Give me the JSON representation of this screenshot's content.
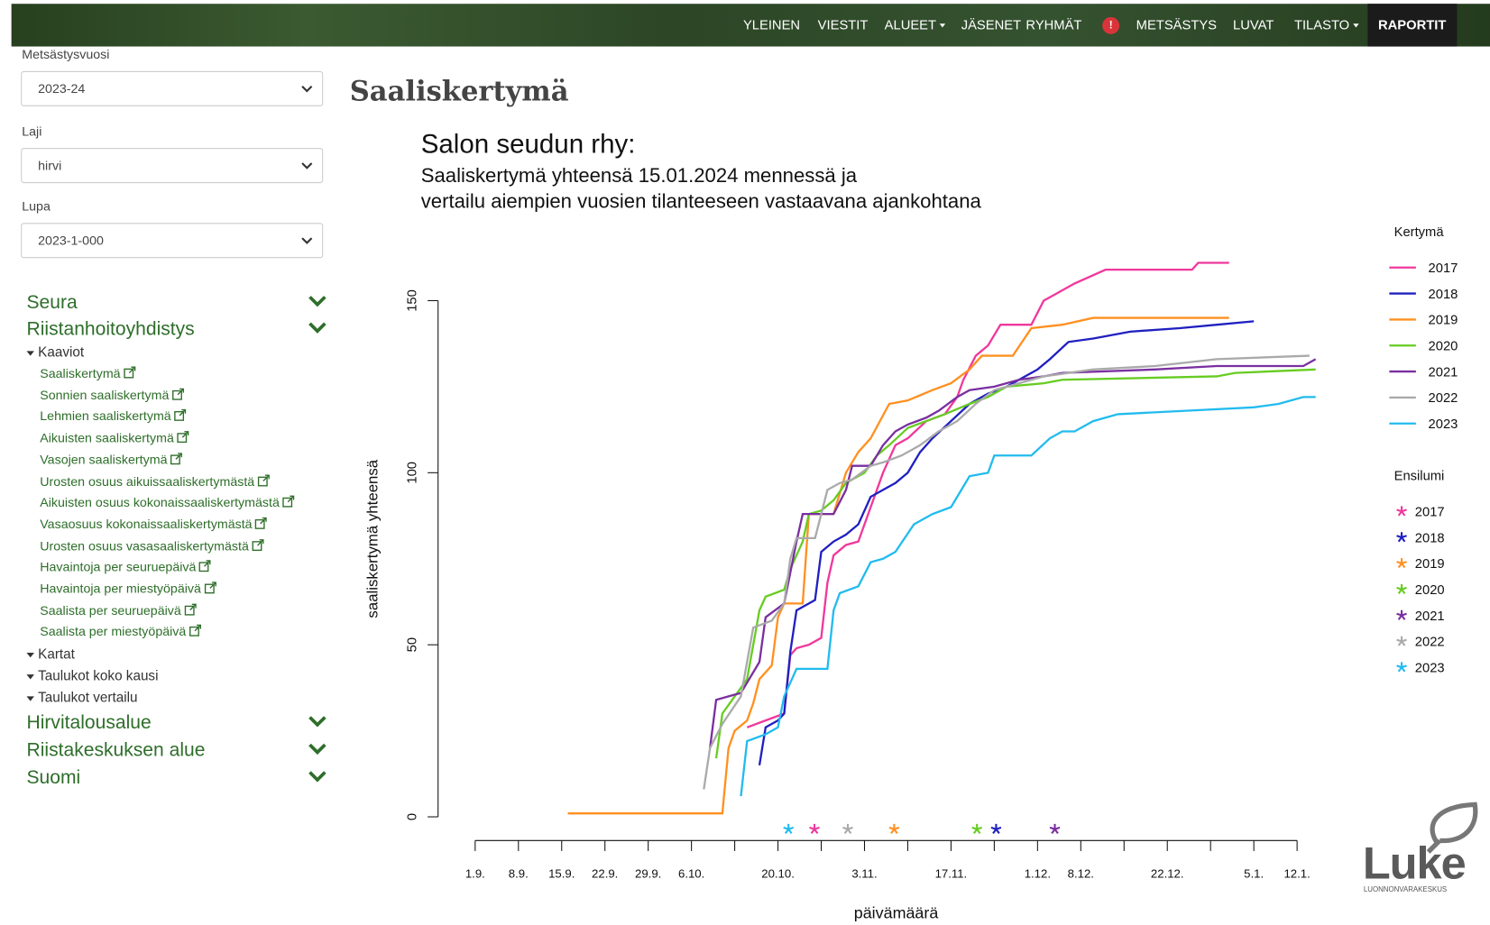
{
  "nav": {
    "items": [
      "YLEINEN",
      "VIESTIT",
      "ALUEET",
      "JÄSENET",
      "RYHMÄT",
      "METSÄSTYS",
      "LUVAT",
      "TILASTO",
      "RAPORTIT"
    ],
    "badge": "!"
  },
  "sidebar": {
    "filters": [
      {
        "label": "Metsästysvuosi",
        "value": "2023-24"
      },
      {
        "label": "Laji",
        "value": "hirvi"
      },
      {
        "label": "Lupa",
        "value": "2023-1-000"
      }
    ],
    "sections": [
      "Seura",
      "Riistanhoitoyhdistys"
    ],
    "group": "Kaaviot",
    "links": [
      "Saaliskertymä",
      "Sonnien saaliskertymä",
      "Lehmien saaliskertymä",
      "Aikuisten saaliskertymä",
      "Vasojen saaliskertymä",
      "Urosten osuus aikuissaaliskertymästä",
      "Aikuisten osuus kokonaissaaliskertymästä",
      "Vasaosuus kokonaissaaliskertymästä",
      "Urosten osuus vasasaaliskertymästä",
      "Havaintoja per seuruepäivä",
      "Havaintoja per miestyöpäivä",
      "Saalista per seuruepäivä",
      "Saalista per miestyöpäivä"
    ],
    "subgroups": [
      "Kartat",
      "Taulukot koko kausi",
      "Taulukot vertailu"
    ],
    "more_sections": [
      "Hirvitalousalue",
      "Riistakeskuksen alue",
      "Suomi"
    ]
  },
  "page_title": "Saaliskertymä",
  "logo": {
    "name": "Luke",
    "subtitle": "LUONNONVARAKESKUS"
  },
  "chart_data": {
    "type": "line",
    "title": "Salon seudun rhy:",
    "subtitle": [
      "Saaliskertymä yhteensä 15.01.2024 mennessä ja",
      "vertailu aiempien vuosien tilanteeseen vastaavana ajankohtana"
    ],
    "x_label": "päivämäärä",
    "y_label": "saaliskertymä yhteensä",
    "xlim": [
      -6,
      145
    ],
    "ylim": [
      -6.4,
      167.4
    ],
    "yticks": [
      0,
      50,
      100,
      150
    ],
    "xticks": [
      {
        "value": 0,
        "label": "1.9."
      },
      {
        "value": 7,
        "label": "8.9."
      },
      {
        "value": 14,
        "label": "15.9."
      },
      {
        "value": 21,
        "label": "22.9."
      },
      {
        "value": 28,
        "label": "29.9."
      },
      {
        "value": 35,
        "label": "6.10."
      },
      {
        "value": 49,
        "label": "20.10."
      },
      {
        "value": 63,
        "label": "3.11."
      },
      {
        "value": 77,
        "label": "17.11."
      },
      {
        "value": 91,
        "label": "1.12."
      },
      {
        "value": 98,
        "label": "8.12."
      },
      {
        "value": 112,
        "label": "22.12."
      },
      {
        "value": 126,
        "label": "5.1."
      },
      {
        "value": 133,
        "label": "12.1."
      }
    ],
    "xminor_ticks": [
      42,
      56,
      70,
      84,
      105,
      119
    ],
    "legend_title": "Kertymä",
    "series": [
      {
        "name": "2017",
        "color": "#f0389c",
        "x": [
          44,
          47,
          50,
          51,
          52,
          54,
          56,
          57,
          58,
          60,
          62,
          64,
          66,
          68,
          70,
          73,
          76,
          78,
          79,
          81,
          83,
          85,
          90,
          92,
          94,
          97,
          102,
          116,
          117,
          122
        ],
        "values": [
          26,
          28,
          30,
          47,
          49,
          50,
          52,
          68,
          76,
          79,
          80,
          90,
          100,
          108,
          110,
          115,
          117,
          122,
          127,
          134,
          137,
          143,
          143,
          150,
          152,
          155,
          159,
          159,
          161,
          161
        ]
      },
      {
        "name": "2018",
        "color": "#2020c0",
        "x": [
          46,
          47,
          49,
          50,
          51,
          52,
          54,
          55,
          56,
          58,
          60,
          62,
          64,
          66,
          68,
          70,
          72,
          74,
          77,
          80,
          83,
          86,
          91,
          93,
          96,
          100,
          106,
          114,
          120,
          126
        ],
        "values": [
          15,
          26,
          28,
          30,
          48,
          60,
          62,
          63,
          77,
          80,
          82,
          85,
          93,
          95,
          97,
          100,
          106,
          110,
          115,
          120,
          123,
          125,
          130,
          133,
          138,
          139,
          141,
          142,
          143,
          144
        ]
      },
      {
        "name": "2019",
        "color": "#ff9020",
        "x": [
          15,
          40,
          41,
          42,
          44,
          45,
          46,
          48,
          49,
          50,
          53,
          54,
          58,
          60,
          62,
          64,
          67,
          70,
          74,
          77,
          80,
          82,
          87,
          90,
          95,
          100,
          122
        ],
        "values": [
          1,
          1,
          20,
          25,
          28,
          33,
          40,
          44,
          58,
          62,
          62,
          88,
          88,
          100,
          106,
          110,
          120,
          121,
          124,
          126,
          130,
          134,
          134,
          142,
          143,
          145,
          145
        ]
      },
      {
        "name": "2020",
        "color": "#66cc22",
        "x": [
          39,
          40,
          42,
          44,
          46,
          47,
          50,
          51,
          53,
          54,
          56,
          58,
          60,
          63,
          65,
          67,
          70,
          73,
          76,
          80,
          83,
          86,
          92,
          95,
          120,
          123,
          136
        ],
        "values": [
          17,
          30,
          35,
          40,
          60,
          64,
          66,
          72,
          80,
          88,
          89,
          92,
          97,
          100,
          105,
          108,
          113,
          115,
          117,
          120,
          122,
          125,
          126,
          127,
          128,
          129,
          130
        ]
      },
      {
        "name": "2021",
        "color": "#7a2fa0",
        "x": [
          38,
          39,
          41,
          43,
          46,
          47,
          50,
          52,
          53,
          58,
          60,
          61,
          64,
          66,
          68,
          70,
          73,
          75,
          78,
          80,
          84,
          88,
          92,
          95,
          110,
          120,
          134,
          136
        ],
        "values": [
          20,
          34,
          35,
          36,
          45,
          58,
          62,
          80,
          88,
          88,
          95,
          102,
          102,
          108,
          112,
          114,
          116,
          118,
          122,
          124,
          125,
          127,
          128,
          129,
          130,
          131,
          131,
          133
        ]
      },
      {
        "name": "2022",
        "color": "#aaaaaa",
        "x": [
          37,
          38,
          40,
          43,
          45,
          48,
          50,
          51,
          52,
          55,
          57,
          59,
          61,
          64,
          66,
          69,
          72,
          75,
          78,
          81,
          84,
          88,
          92,
          100,
          110,
          120,
          135
        ],
        "values": [
          8,
          20,
          27,
          35,
          55,
          57,
          62,
          75,
          81,
          81,
          95,
          97,
          98,
          102,
          103,
          105,
          108,
          112,
          115,
          120,
          124,
          126,
          128,
          130,
          131,
          133,
          134
        ]
      },
      {
        "name": "2023",
        "color": "#22bbee",
        "x": [
          43,
          44,
          47,
          49,
          50,
          52,
          57,
          58,
          59,
          62,
          64,
          66,
          68,
          71,
          74,
          77,
          80,
          83,
          84,
          90,
          93,
          95,
          97,
          100,
          104,
          115,
          126,
          130,
          134,
          136
        ],
        "values": [
          6,
          22,
          24,
          26,
          35,
          43,
          43,
          60,
          65,
          67,
          74,
          75,
          77,
          85,
          88,
          90,
          99,
          100,
          105,
          105,
          110,
          112,
          112,
          115,
          117,
          118,
          119,
          120,
          122,
          122
        ]
      }
    ],
    "ensilumi_title": "Ensilumi",
    "ensilumi": [
      {
        "name": "2017",
        "color": "#f0389c",
        "x": 54.9
      },
      {
        "name": "2018",
        "color": "#2020c0",
        "x": 84.3
      },
      {
        "name": "2019",
        "color": "#ff9020",
        "x": 67.8
      },
      {
        "name": "2020",
        "color": "#66cc22",
        "x": 81.2
      },
      {
        "name": "2021",
        "color": "#7a2fa0",
        "x": 93.8
      },
      {
        "name": "2022",
        "color": "#aaaaaa",
        "x": 60.3
      },
      {
        "name": "2023",
        "color": "#22bbee",
        "x": 50.7
      }
    ]
  }
}
